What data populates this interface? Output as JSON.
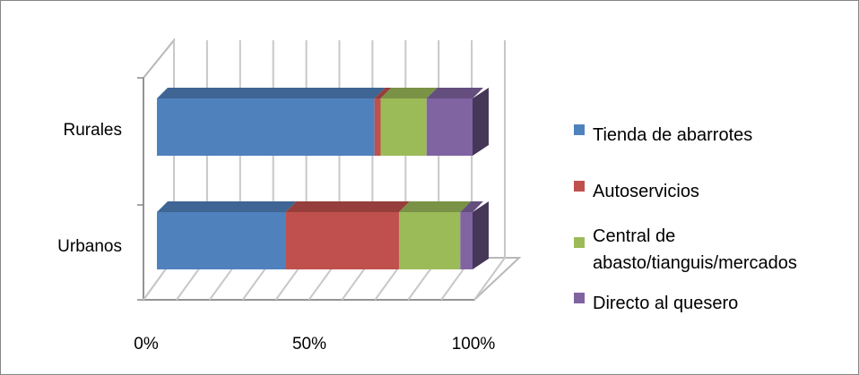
{
  "chart_data": {
    "type": "bar",
    "orientation": "horizontal",
    "stacking": "percent",
    "three_d": true,
    "categories": [
      "Rurales",
      "Urbanos"
    ],
    "series": [
      {
        "name": "Tienda de abarrotes",
        "values": [
          71,
          42
        ],
        "color": "#4F81BD"
      },
      {
        "name": "Autoservicios",
        "values": [
          2,
          37
        ],
        "color": "#C0504D"
      },
      {
        "name": "Central de abasto/tianguis/mercados",
        "values": [
          15,
          20
        ],
        "color": "#9BBB59"
      },
      {
        "name": "Directo al quesero",
        "values": [
          15,
          4
        ],
        "color": "#8064A2"
      }
    ],
    "x_ticks": [
      "0%",
      "50%",
      "100%"
    ],
    "xlim": [
      0,
      100
    ],
    "grid": true,
    "legend": "right",
    "title": "",
    "xlabel": "",
    "ylabel": ""
  }
}
